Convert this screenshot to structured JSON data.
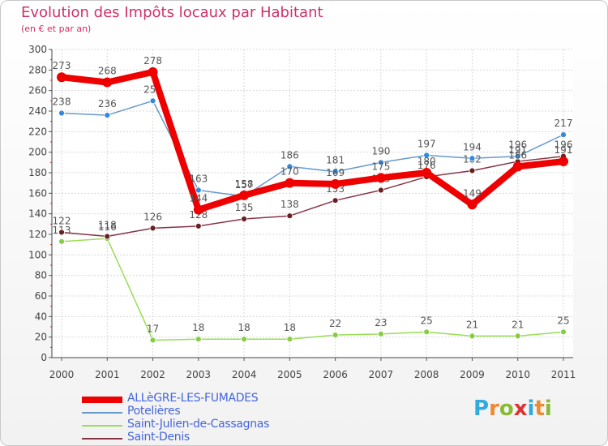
{
  "header": {
    "title": "Evolution des Impôts locaux par Habitant",
    "subtitle": "(en € et par an)"
  },
  "chart_data": {
    "type": "line",
    "title": "Evolution des Impôts locaux par Habitant",
    "subtitle": "(en € et par an)",
    "xlabel": "",
    "ylabel": "",
    "x": [
      "2000",
      "2001",
      "2002",
      "2003",
      "2004",
      "2005",
      "2006",
      "2007",
      "2008",
      "2009",
      "2010",
      "2011"
    ],
    "ylim": [
      0,
      300
    ],
    "yticks": [
      0,
      20,
      40,
      60,
      80,
      100,
      120,
      140,
      160,
      180,
      200,
      220,
      240,
      260,
      280,
      300
    ],
    "grid": true,
    "legend_position": "bottom-left",
    "series": [
      {
        "name": "Saint-Julien-de-Cassagnas",
        "color": "#99dd55",
        "marker": "#88cc44",
        "values": [
          113,
          116,
          17,
          18,
          18,
          18,
          22,
          23,
          25,
          21,
          21,
          25
        ],
        "labels": [
          "113",
          "116",
          "17",
          "18",
          "18",
          "18",
          "22",
          "23",
          "25",
          "21",
          "21",
          "25"
        ]
      },
      {
        "name": "Saint-Denis",
        "color": "#883344",
        "marker": "#662222",
        "values": [
          122,
          118,
          126,
          128,
          135,
          138,
          153,
          163,
          176,
          182,
          191,
          196
        ],
        "labels": [
          "122",
          "118",
          "126",
          "128",
          "135",
          "138",
          "153",
          "163",
          "176",
          "182",
          "191",
          "196"
        ]
      },
      {
        "name": "Potelières",
        "color": "#6699cc",
        "marker": "#3388dd",
        "values": [
          238,
          236,
          250,
          163,
          157,
          186,
          181,
          190,
          197,
          194,
          196,
          217
        ],
        "labels": [
          "238",
          "236",
          "250",
          "163",
          "157",
          "186",
          "181",
          "190",
          "197",
          "194",
          "196",
          "217"
        ]
      },
      {
        "name": "ALLèGRE-LES-FUMADES",
        "color": "#ee0000",
        "marker": "#ee0000",
        "values": [
          273,
          268,
          278,
          144,
          158,
          170,
          169,
          175,
          180,
          149,
          186,
          191
        ],
        "labels": [
          "273",
          "268",
          "278",
          "144",
          "158",
          "170",
          "169",
          "175",
          "180",
          "149",
          "186",
          "191"
        ]
      }
    ]
  },
  "legend": {
    "items": [
      {
        "label": "ALLèGRE-LES-FUMADES",
        "color": "#ee0000"
      },
      {
        "label": "Potelières",
        "color": "#6699cc"
      },
      {
        "label": "Saint-Julien-de-Cassagnas",
        "color": "#99dd55"
      },
      {
        "label": "Saint-Denis",
        "color": "#883344"
      }
    ]
  },
  "logo": {
    "letters": [
      "P",
      "r",
      "o",
      "x",
      "i",
      "t",
      "i"
    ],
    "colors": [
      "#33aadd",
      "#ee8833",
      "#88bb33",
      "#dd3333",
      "#33aadd",
      "#ee8833",
      "#88bb33"
    ]
  }
}
